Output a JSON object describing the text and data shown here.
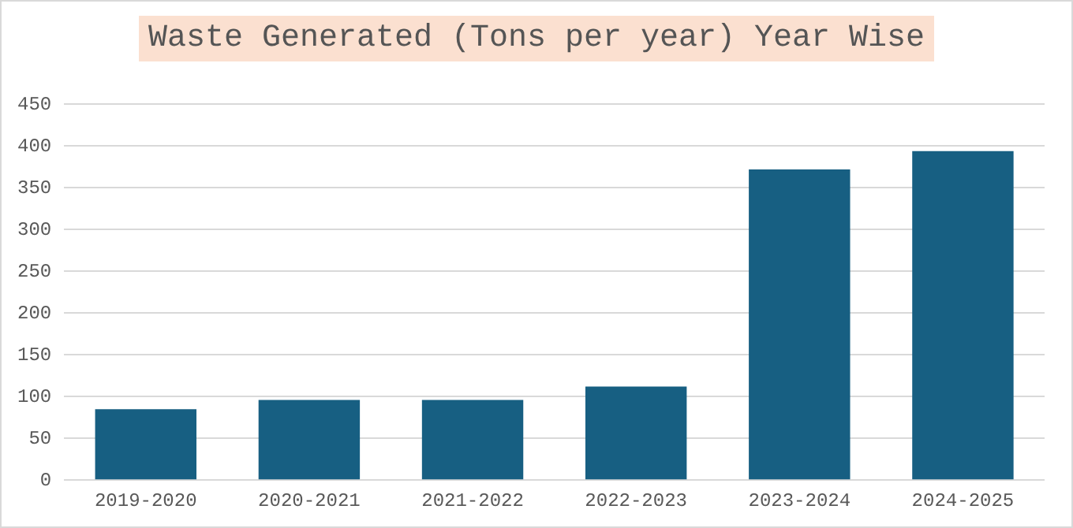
{
  "chart_data": {
    "type": "bar",
    "title": "Waste Generated (Tons per year) Year Wise",
    "categories": [
      "2019-2020",
      "2020-2021",
      "2021-2022",
      "2022-2023",
      "2023-2024",
      "2024-2025"
    ],
    "values": [
      85,
      96,
      96,
      112,
      372,
      394
    ],
    "color": "#175f82",
    "ylim": [
      0,
      450
    ],
    "yticks": [
      0,
      50,
      100,
      150,
      200,
      250,
      300,
      350,
      400,
      450
    ],
    "grid": "y",
    "legend": false
  }
}
